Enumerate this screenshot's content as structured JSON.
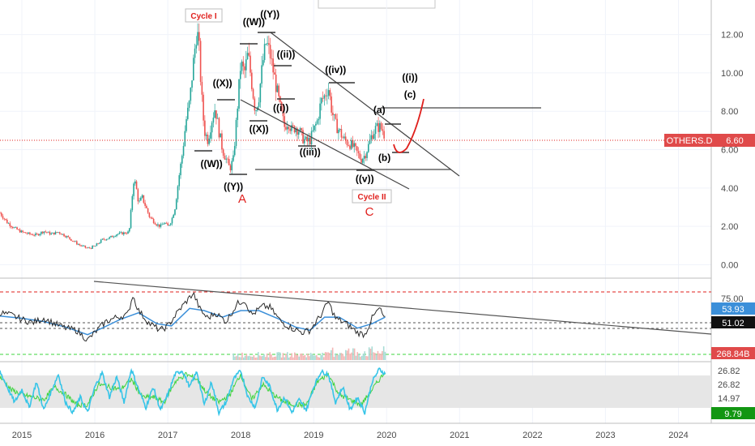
{
  "chart_data": {
    "type": "line",
    "symbol": "OTHERS.D",
    "current_value": "6.60",
    "colors": {
      "up": "#26a69a",
      "down": "#ef5350",
      "price_line": "#e0201d",
      "trend_line": "#555555",
      "rsi_line": "#2a2a2a",
      "rsi_ma": "#3b8fd9",
      "stoch_k": "#37c5e8",
      "stoch_d": "#3fd43f",
      "tag_red": "#e04a4a",
      "tag_blue": "#3b8fd9",
      "tag_black": "#111111",
      "tag_green": "#129612"
    },
    "x_axis": {
      "start": 2014.7,
      "end": 2024.45,
      "ticks": [
        "2015",
        "2016",
        "2017",
        "2018",
        "2019",
        "2020",
        "2021",
        "2022",
        "2023",
        "2024"
      ]
    },
    "price_panel": {
      "ylim": [
        -0.7,
        13.8
      ],
      "ticks": [
        "12.00",
        "10.00",
        "8.00",
        "6.00",
        "4.00",
        "2.00",
        "0.00"
      ],
      "series": [
        [
          2014.7,
          2.7
        ],
        [
          2014.8,
          2.2
        ],
        [
          2014.9,
          1.9
        ],
        [
          2015.0,
          1.7
        ],
        [
          2015.1,
          1.6
        ],
        [
          2015.2,
          1.55
        ],
        [
          2015.3,
          1.75
        ],
        [
          2015.4,
          1.6
        ],
        [
          2015.5,
          1.7
        ],
        [
          2015.6,
          1.5
        ],
        [
          2015.7,
          1.25
        ],
        [
          2015.8,
          1.0
        ],
        [
          2015.9,
          0.85
        ],
        [
          2016.0,
          0.95
        ],
        [
          2016.1,
          1.3
        ],
        [
          2016.2,
          1.4
        ],
        [
          2016.3,
          1.6
        ],
        [
          2016.4,
          1.65
        ],
        [
          2016.47,
          1.7
        ],
        [
          2016.5,
          3.0
        ],
        [
          2016.53,
          4.4
        ],
        [
          2016.56,
          4.2
        ],
        [
          2016.6,
          3.2
        ],
        [
          2016.65,
          3.5
        ],
        [
          2016.7,
          3.0
        ],
        [
          2016.75,
          2.5
        ],
        [
          2016.8,
          2.3
        ],
        [
          2016.85,
          2.1
        ],
        [
          2016.9,
          2.0
        ],
        [
          2016.95,
          2.2
        ],
        [
          2017.0,
          2.0
        ],
        [
          2017.05,
          2.3
        ],
        [
          2017.1,
          3.0
        ],
        [
          2017.15,
          4.5
        ],
        [
          2017.2,
          5.8
        ],
        [
          2017.25,
          7.5
        ],
        [
          2017.3,
          8.5
        ],
        [
          2017.35,
          10.5
        ],
        [
          2017.4,
          12.3
        ],
        [
          2017.43,
          11.2
        ],
        [
          2017.46,
          9.0
        ],
        [
          2017.5,
          7.0
        ],
        [
          2017.55,
          6.5
        ],
        [
          2017.6,
          7.5
        ],
        [
          2017.65,
          8.2
        ],
        [
          2017.7,
          7.0
        ],
        [
          2017.75,
          6.0
        ],
        [
          2017.8,
          5.5
        ],
        [
          2017.85,
          5.0
        ],
        [
          2017.9,
          5.5
        ],
        [
          2017.95,
          8.0
        ],
        [
          2018.0,
          10.5
        ],
        [
          2018.05,
          10.0
        ],
        [
          2018.1,
          11.0
        ],
        [
          2018.15,
          9.5
        ],
        [
          2018.2,
          8.0
        ],
        [
          2018.25,
          8.8
        ],
        [
          2018.3,
          10.5
        ],
        [
          2018.35,
          11.6
        ],
        [
          2018.4,
          11.0
        ],
        [
          2018.45,
          10.0
        ],
        [
          2018.5,
          9.0
        ],
        [
          2018.55,
          8.0
        ],
        [
          2018.6,
          7.2
        ],
        [
          2018.65,
          7.5
        ],
        [
          2018.7,
          7.0
        ],
        [
          2018.75,
          7.2
        ],
        [
          2018.8,
          7.0
        ],
        [
          2018.85,
          6.6
        ],
        [
          2018.9,
          6.4
        ],
        [
          2018.95,
          6.5
        ],
        [
          2019.0,
          7.0
        ],
        [
          2019.05,
          7.5
        ],
        [
          2019.1,
          8.5
        ],
        [
          2019.15,
          8.8
        ],
        [
          2019.2,
          9.3
        ],
        [
          2019.25,
          8.0
        ],
        [
          2019.3,
          7.3
        ],
        [
          2019.35,
          7.0
        ],
        [
          2019.4,
          6.6
        ],
        [
          2019.45,
          6.4
        ],
        [
          2019.5,
          6.3
        ],
        [
          2019.55,
          6.1
        ],
        [
          2019.6,
          5.8
        ],
        [
          2019.65,
          5.5
        ],
        [
          2019.7,
          5.7
        ],
        [
          2019.75,
          6.2
        ],
        [
          2019.8,
          6.8
        ],
        [
          2019.85,
          7.1
        ],
        [
          2019.9,
          7.2
        ],
        [
          2019.95,
          7.0
        ],
        [
          2019.98,
          6.6
        ]
      ]
    },
    "rsi_panel": {
      "ticks": [
        "75.00"
      ],
      "levels": [
        "53.93",
        "51.02"
      ],
      "volume_label": "268.84B",
      "series": [
        [
          2014.7,
          60
        ],
        [
          2014.85,
          58
        ],
        [
          2015.0,
          54
        ],
        [
          2015.15,
          51
        ],
        [
          2015.3,
          55
        ],
        [
          2015.45,
          50
        ],
        [
          2015.6,
          46
        ],
        [
          2015.75,
          44
        ],
        [
          2015.9,
          35
        ],
        [
          2016.0,
          42
        ],
        [
          2016.15,
          52
        ],
        [
          2016.3,
          56
        ],
        [
          2016.45,
          58
        ],
        [
          2016.52,
          76
        ],
        [
          2016.6,
          62
        ],
        [
          2016.75,
          50
        ],
        [
          2016.9,
          44
        ],
        [
          2017.0,
          48
        ],
        [
          2017.15,
          62
        ],
        [
          2017.25,
          70
        ],
        [
          2017.35,
          78
        ],
        [
          2017.45,
          62
        ],
        [
          2017.55,
          55
        ],
        [
          2017.65,
          60
        ],
        [
          2017.8,
          52
        ],
        [
          2017.95,
          68
        ],
        [
          2018.05,
          72
        ],
        [
          2018.15,
          58
        ],
        [
          2018.3,
          66
        ],
        [
          2018.4,
          65
        ],
        [
          2018.55,
          52
        ],
        [
          2018.7,
          46
        ],
        [
          2018.85,
          42
        ],
        [
          2018.95,
          44
        ],
        [
          2019.1,
          58
        ],
        [
          2019.2,
          70
        ],
        [
          2019.3,
          55
        ],
        [
          2019.45,
          50
        ],
        [
          2019.6,
          42
        ],
        [
          2019.7,
          40
        ],
        [
          2019.8,
          55
        ],
        [
          2019.9,
          64
        ],
        [
          2019.98,
          54
        ]
      ],
      "ma": [
        [
          2014.7,
          57
        ],
        [
          2015.0,
          55
        ],
        [
          2015.3,
          52
        ],
        [
          2015.6,
          47
        ],
        [
          2015.9,
          40
        ],
        [
          2016.1,
          46
        ],
        [
          2016.35,
          54
        ],
        [
          2016.6,
          60
        ],
        [
          2016.85,
          50
        ],
        [
          2017.05,
          48
        ],
        [
          2017.3,
          64
        ],
        [
          2017.5,
          62
        ],
        [
          2017.75,
          56
        ],
        [
          2018.0,
          62
        ],
        [
          2018.25,
          62
        ],
        [
          2018.5,
          55
        ],
        [
          2018.75,
          47
        ],
        [
          2018.95,
          44
        ],
        [
          2019.15,
          56
        ],
        [
          2019.35,
          56
        ],
        [
          2019.6,
          46
        ],
        [
          2019.8,
          50
        ],
        [
          2019.98,
          56
        ]
      ]
    },
    "stoch_panel": {
      "levels": [
        "26.82",
        "26.82",
        "14.97",
        "9.79"
      ],
      "k": [
        [
          2014.7,
          90
        ],
        [
          2014.8,
          60
        ],
        [
          2014.9,
          30
        ],
        [
          2015.0,
          55
        ],
        [
          2015.1,
          20
        ],
        [
          2015.2,
          70
        ],
        [
          2015.3,
          15
        ],
        [
          2015.4,
          50
        ],
        [
          2015.5,
          85
        ],
        [
          2015.6,
          30
        ],
        [
          2015.7,
          10
        ],
        [
          2015.8,
          40
        ],
        [
          2015.9,
          10
        ],
        [
          2016.0,
          60
        ],
        [
          2016.1,
          88
        ],
        [
          2016.2,
          40
        ],
        [
          2016.3,
          80
        ],
        [
          2016.4,
          30
        ],
        [
          2016.5,
          95
        ],
        [
          2016.6,
          55
        ],
        [
          2016.7,
          20
        ],
        [
          2016.8,
          60
        ],
        [
          2016.9,
          15
        ],
        [
          2017.0,
          45
        ],
        [
          2017.1,
          85
        ],
        [
          2017.2,
          92
        ],
        [
          2017.3,
          60
        ],
        [
          2017.4,
          90
        ],
        [
          2017.5,
          25
        ],
        [
          2017.6,
          70
        ],
        [
          2017.7,
          10
        ],
        [
          2017.8,
          30
        ],
        [
          2017.9,
          75
        ],
        [
          2018.0,
          92
        ],
        [
          2018.1,
          40
        ],
        [
          2018.2,
          20
        ],
        [
          2018.3,
          80
        ],
        [
          2018.4,
          60
        ],
        [
          2018.5,
          15
        ],
        [
          2018.6,
          40
        ],
        [
          2018.7,
          10
        ],
        [
          2018.8,
          35
        ],
        [
          2018.9,
          15
        ],
        [
          2019.0,
          60
        ],
        [
          2019.1,
          90
        ],
        [
          2019.2,
          85
        ],
        [
          2019.3,
          30
        ],
        [
          2019.4,
          60
        ],
        [
          2019.5,
          15
        ],
        [
          2019.6,
          40
        ],
        [
          2019.7,
          10
        ],
        [
          2019.8,
          70
        ],
        [
          2019.9,
          95
        ],
        [
          2019.98,
          85
        ]
      ],
      "d": [
        [
          2014.7,
          80
        ],
        [
          2014.85,
          55
        ],
        [
          2015.0,
          45
        ],
        [
          2015.15,
          40
        ],
        [
          2015.3,
          35
        ],
        [
          2015.45,
          60
        ],
        [
          2015.6,
          45
        ],
        [
          2015.75,
          25
        ],
        [
          2015.9,
          25
        ],
        [
          2016.05,
          65
        ],
        [
          2016.2,
          60
        ],
        [
          2016.35,
          55
        ],
        [
          2016.5,
          75
        ],
        [
          2016.65,
          40
        ],
        [
          2016.8,
          40
        ],
        [
          2016.95,
          30
        ],
        [
          2017.1,
          70
        ],
        [
          2017.25,
          85
        ],
        [
          2017.4,
          75
        ],
        [
          2017.55,
          45
        ],
        [
          2017.7,
          30
        ],
        [
          2017.85,
          45
        ],
        [
          2018.0,
          85
        ],
        [
          2018.15,
          35
        ],
        [
          2018.3,
          65
        ],
        [
          2018.45,
          45
        ],
        [
          2018.6,
          30
        ],
        [
          2018.75,
          25
        ],
        [
          2018.9,
          25
        ],
        [
          2019.05,
          70
        ],
        [
          2019.2,
          85
        ],
        [
          2019.35,
          45
        ],
        [
          2019.5,
          35
        ],
        [
          2019.65,
          25
        ],
        [
          2019.8,
          55
        ],
        [
          2019.98,
          90
        ]
      ]
    },
    "labels": {
      "cycle_1": "Cycle I",
      "cycle_2": "Cycle II",
      "letter_a": "A",
      "letter_c": "C",
      "waves": [
        {
          "text": "((W))",
          "t": 2018.18,
          "v": 12.5
        },
        {
          "text": "((Y))",
          "t": 2018.4,
          "v": 12.9
        },
        {
          "text": "((X))",
          "t": 2017.75,
          "v": 9.3
        },
        {
          "text": "((W))",
          "t": 2017.6,
          "v": 5.1
        },
        {
          "text": "((Y))",
          "t": 2017.9,
          "v": 3.9
        },
        {
          "text": "((X))",
          "t": 2018.25,
          "v": 6.9
        },
        {
          "text": "((ii))",
          "t": 2018.62,
          "v": 10.8
        },
        {
          "text": "((i))",
          "t": 2018.55,
          "v": 8.0
        },
        {
          "text": "((iii))",
          "t": 2018.95,
          "v": 5.7
        },
        {
          "text": "((iv))",
          "t": 2019.3,
          "v": 10.0
        },
        {
          "text": "((v))",
          "t": 2019.7,
          "v": 4.3
        },
        {
          "text": "(a)",
          "t": 2019.9,
          "v": 7.9
        },
        {
          "text": "(b)",
          "t": 2019.97,
          "v": 5.4
        },
        {
          "text": "((i))",
          "t": 2020.32,
          "v": 9.6
        },
        {
          "text": "(c)",
          "t": 2020.32,
          "v": 8.7
        }
      ]
    }
  }
}
